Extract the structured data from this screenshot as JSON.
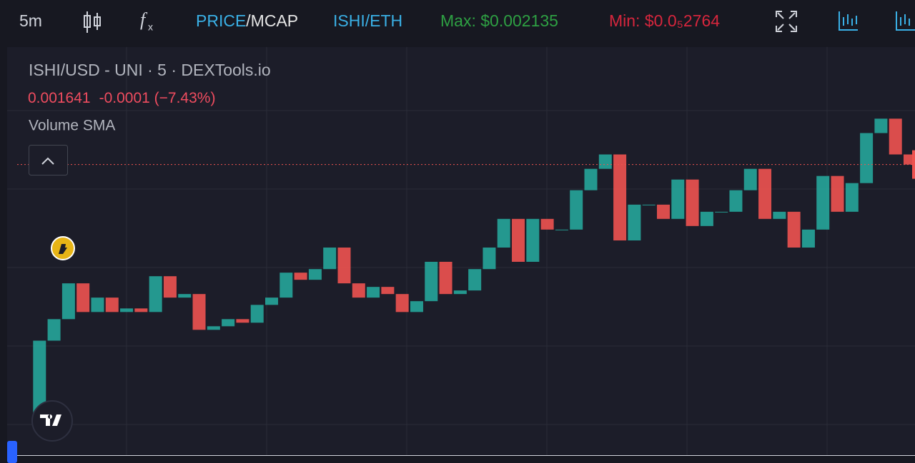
{
  "toolbar": {
    "interval": "5m",
    "price": "PRICE",
    "mcap": "/MCAP",
    "pair": "ISHI/ETH",
    "max": "Max: $0.002135",
    "min": "Min: $0.0₅2764"
  },
  "chart_data": {
    "type": "candlestick",
    "title": "ISHI/USD - UNI · 5 · DEXTools.io",
    "last_price": 0.001641,
    "change_label": "-0.0001 (−7.43%)",
    "indicator": "Volume SMA",
    "up_color": "#26a69a",
    "down_color": "#ef5350",
    "ylim": [
      -0.000235,
      0.002399
    ],
    "values": [
      3e-06,
      0.000504,
      0.000643,
      0.000874,
      0.000689,
      0.000782,
      0.000689,
      0.000712,
      0.000689,
      0.00092,
      0.000782,
      0.000805,
      0.000574,
      0.000597,
      0.000643,
      0.00062,
      0.000735,
      0.000782,
      0.000943,
      0.000897,
      0.000966,
      0.001105,
      0.000874,
      0.000782,
      0.000851,
      0.000805,
      0.000689,
      0.000759,
      0.001013,
      0.000805,
      0.000828,
      0.000966,
      0.001105,
      0.00129,
      0.001013,
      0.00129,
      0.001221,
      0.001221,
      0.001475,
      0.001613,
      0.001706,
      0.001151,
      0.001382,
      0.001382,
      0.00129,
      0.001544,
      0.001244,
      0.001336,
      0.001336,
      0.001475,
      0.001613,
      0.00129,
      0.001336,
      0.001105,
      0.001221,
      0.001567,
      0.001336,
      0.001521,
      0.001844,
      0.001937,
      0.001706,
      0.001641
    ]
  }
}
